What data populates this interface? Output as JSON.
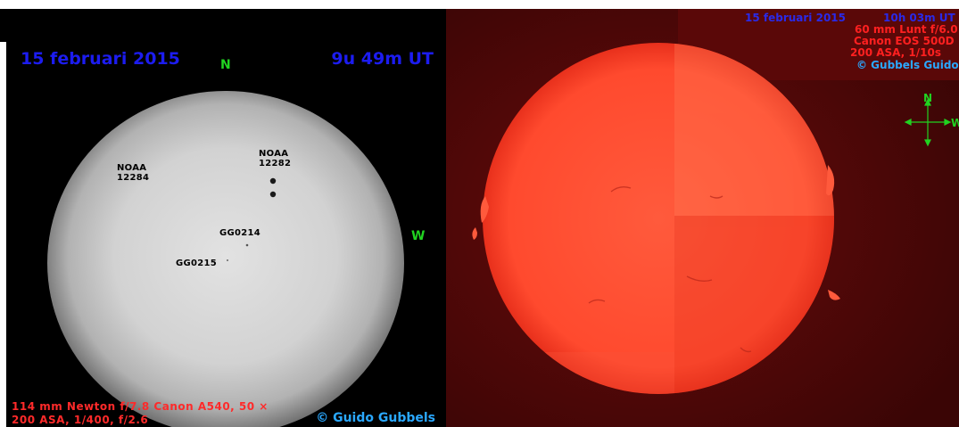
{
  "left_image": {
    "date": "15 februari 2015",
    "time": "9u 49m UT",
    "north_label": "N",
    "west_label": "W",
    "sunspot_labels": [
      {
        "line1": "NOAA",
        "line2": "12284"
      },
      {
        "line1": "NOAA",
        "line2": "12282"
      },
      {
        "line1": "GG0214",
        "line2": ""
      },
      {
        "line1": "GG0215",
        "line2": ""
      }
    ],
    "caption_line1": "114 mm Newton f/7.8  Canon A540, 50 ×",
    "caption_line2": "200 ASA, 1/400, f/2.6",
    "copyright": "© Guido Gubbels"
  },
  "right_image": {
    "date": "15 februari 2015",
    "time": "10h 03m UT",
    "line1": "60 mm Lunt f/6.0",
    "line2": "Canon EOS 500D",
    "line3": "200 ASA, 1/10s",
    "copyright": "© Gubbels Guido",
    "compass_n": "N",
    "compass_w": "W"
  },
  "colors": {
    "date_blue": "#1c1cf0",
    "direction_green": "#21d321",
    "caption_red": "#ff2a2a",
    "copyright_cyan": "#2aa8ff",
    "halpha_disk": "#ff4a2e"
  }
}
